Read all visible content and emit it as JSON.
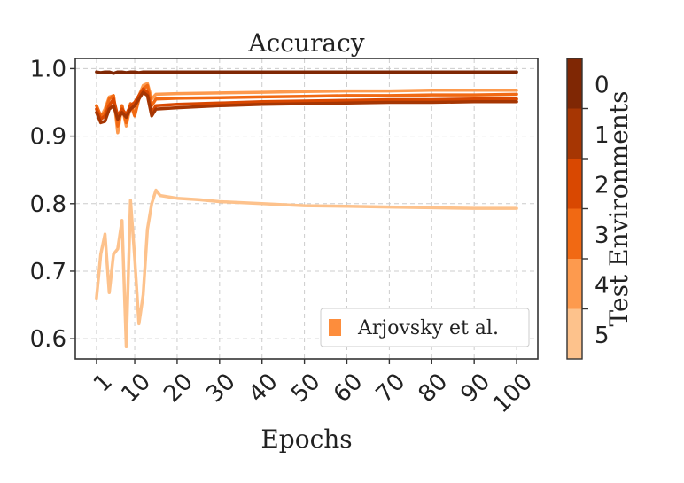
{
  "chart_data": {
    "type": "line",
    "title": "Accuracy",
    "xlabel": "Epochs",
    "ylabel": "",
    "xlim": [
      -4,
      105
    ],
    "ylim": [
      0.57,
      1.015
    ],
    "xticks": [
      1,
      10,
      20,
      30,
      40,
      50,
      60,
      70,
      80,
      90,
      100
    ],
    "xtick_labels": [
      "1",
      "10",
      "20",
      "30",
      "40",
      "50",
      "60",
      "70",
      "80",
      "90",
      "100"
    ],
    "yticks": [
      0.6,
      0.7,
      0.8,
      0.9,
      1.0
    ],
    "ytick_labels": [
      "0.6",
      "0.7",
      "0.8",
      "0.9",
      "1.0"
    ],
    "grid": true,
    "legend": {
      "position": "bottom-right",
      "label": "Arjovsky et al.",
      "color": "#fd8d3c"
    },
    "colorbar": {
      "label": "Test Environments",
      "ticks": [
        "0",
        "1",
        "2",
        "3",
        "4",
        "5"
      ],
      "colors": [
        "#7f2704",
        "#a63603",
        "#d94801",
        "#f16913",
        "#fd9a4e",
        "#fdc28c"
      ]
    },
    "series": [
      {
        "env": "0",
        "color": "#7f2704",
        "x": [
          1,
          2,
          3,
          4,
          5,
          6,
          7,
          8,
          9,
          10,
          11,
          12,
          13,
          14,
          15,
          20,
          30,
          40,
          50,
          60,
          70,
          80,
          90,
          100
        ],
        "y": [
          0.995,
          0.994,
          0.995,
          0.995,
          0.993,
          0.995,
          0.995,
          0.994,
          0.995,
          0.995,
          0.994,
          0.995,
          0.995,
          0.995,
          0.995,
          0.995,
          0.995,
          0.995,
          0.995,
          0.995,
          0.995,
          0.995,
          0.995,
          0.995
        ]
      },
      {
        "env": "1",
        "color": "#a63603",
        "x": [
          1,
          2,
          3,
          4,
          5,
          6,
          7,
          8,
          9,
          10,
          11,
          12,
          13,
          14,
          15,
          20,
          30,
          40,
          50,
          60,
          70,
          80,
          90,
          100
        ],
        "y": [
          0.935,
          0.92,
          0.922,
          0.94,
          0.945,
          0.925,
          0.935,
          0.928,
          0.94,
          0.945,
          0.955,
          0.965,
          0.96,
          0.93,
          0.94,
          0.942,
          0.945,
          0.947,
          0.948,
          0.949,
          0.95,
          0.95,
          0.951,
          0.951
        ]
      },
      {
        "env": "2",
        "color": "#d94801",
        "x": [
          1,
          2,
          3,
          4,
          5,
          6,
          7,
          8,
          9,
          10,
          11,
          12,
          13,
          14,
          15,
          20,
          30,
          40,
          50,
          60,
          70,
          80,
          90,
          100
        ],
        "y": [
          0.94,
          0.925,
          0.93,
          0.945,
          0.955,
          0.93,
          0.94,
          0.932,
          0.945,
          0.95,
          0.96,
          0.97,
          0.965,
          0.935,
          0.945,
          0.947,
          0.949,
          0.951,
          0.952,
          0.953,
          0.954,
          0.954,
          0.955,
          0.955
        ]
      },
      {
        "env": "3",
        "color": "#f16913",
        "x": [
          1,
          2,
          3,
          4,
          5,
          6,
          7,
          8,
          9,
          10,
          11,
          12,
          13,
          14,
          15,
          20,
          30,
          40,
          50,
          60,
          70,
          80,
          90,
          100
        ],
        "y": [
          0.945,
          0.93,
          0.935,
          0.955,
          0.96,
          0.915,
          0.945,
          0.92,
          0.948,
          0.93,
          0.955,
          0.97,
          0.975,
          0.945,
          0.955,
          0.956,
          0.957,
          0.958,
          0.959,
          0.96,
          0.96,
          0.961,
          0.961,
          0.962
        ]
      },
      {
        "env": "4",
        "color": "#fd9a4e",
        "x": [
          1,
          2,
          3,
          4,
          5,
          6,
          7,
          8,
          9,
          10,
          11,
          12,
          13,
          14,
          15,
          20,
          30,
          40,
          50,
          60,
          70,
          80,
          90,
          100
        ],
        "y": [
          0.945,
          0.928,
          0.94,
          0.958,
          0.96,
          0.905,
          0.945,
          0.915,
          0.945,
          0.935,
          0.96,
          0.975,
          0.978,
          0.955,
          0.962,
          0.963,
          0.964,
          0.965,
          0.966,
          0.967,
          0.967,
          0.968,
          0.968,
          0.968
        ]
      },
      {
        "env": "5",
        "color": "#fdc28c",
        "x": [
          1,
          2,
          3,
          4,
          5,
          6,
          7,
          8,
          9,
          10,
          11,
          12,
          13,
          14,
          15,
          16,
          20,
          25,
          30,
          40,
          50,
          60,
          70,
          80,
          90,
          100
        ],
        "y": [
          0.66,
          0.725,
          0.755,
          0.668,
          0.725,
          0.733,
          0.775,
          0.588,
          0.805,
          0.72,
          0.622,
          0.665,
          0.762,
          0.8,
          0.82,
          0.812,
          0.808,
          0.806,
          0.803,
          0.8,
          0.797,
          0.796,
          0.795,
          0.794,
          0.793,
          0.793
        ]
      }
    ]
  }
}
